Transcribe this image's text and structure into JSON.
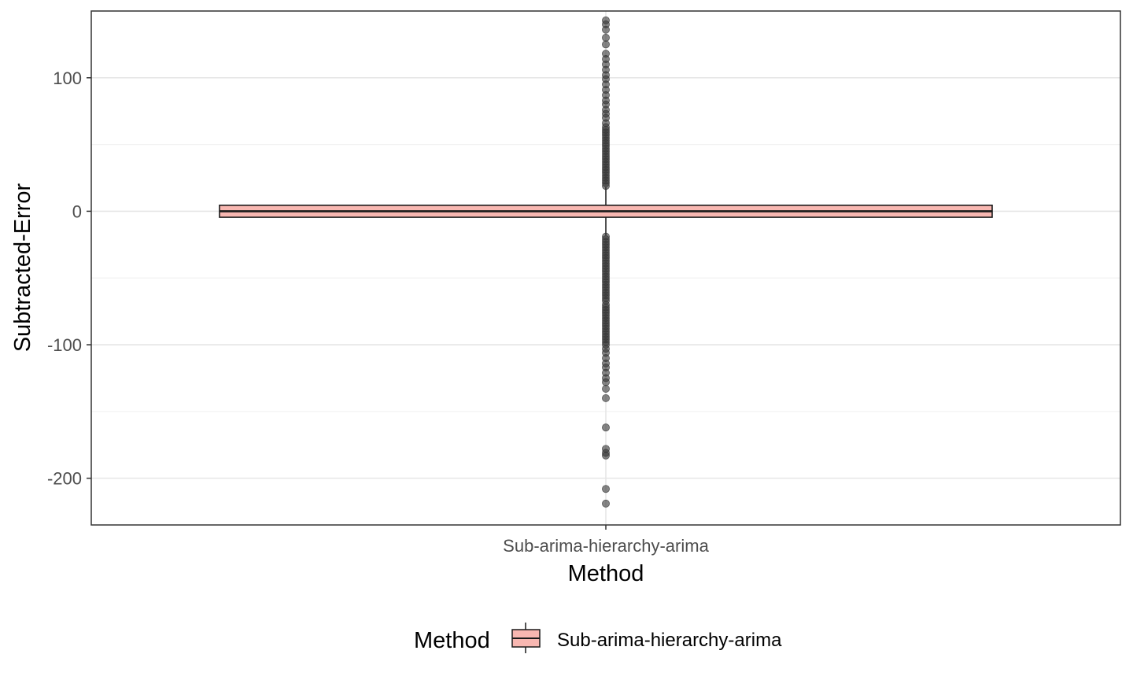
{
  "chart_data": {
    "type": "boxplot",
    "xlabel": "Method",
    "ylabel": "Subtracted-Error",
    "categories": [
      "Sub-arima-hierarchy-arima"
    ],
    "y_ticks": [
      100,
      0,
      -100,
      -200
    ],
    "y_tick_labels": [
      "100",
      "0",
      "-100",
      "-200"
    ],
    "ylim": [
      -235,
      150
    ],
    "grid": true,
    "legend": {
      "title": "Method",
      "position": "bottom",
      "entries": [
        "Sub-arima-hierarchy-arima"
      ]
    },
    "colors": {
      "box_fill": "#f8b7b1",
      "box_stroke": "#1a1a1a",
      "outlier": "#333333",
      "grid_major": "#e6e6e6",
      "grid_minor": "#f2f2f2",
      "panel_border": "#333333"
    },
    "boxes": [
      {
        "category": "Sub-arima-hierarchy-arima",
        "q1": -4.5,
        "median": 0,
        "q3": 4.5,
        "whisker_low": -18,
        "whisker_high": 18,
        "outliers": [
          143,
          140,
          136,
          130,
          125,
          118,
          114,
          110,
          106,
          102,
          99,
          95,
          91,
          87,
          83,
          80,
          76,
          73,
          70,
          66,
          63,
          61,
          59,
          57,
          55,
          53,
          51,
          49,
          47,
          45,
          43,
          41,
          39,
          37,
          35,
          33,
          31,
          29,
          27,
          25,
          23,
          21,
          19,
          -19,
          -21,
          -23,
          -25,
          -27,
          -29,
          -31,
          -33,
          -35,
          -37,
          -39,
          -41,
          -43,
          -45,
          -47,
          -49,
          -51,
          -53,
          -55,
          -57,
          -59,
          -61,
          -63,
          -65,
          -67,
          -70,
          -72,
          -74,
          -76,
          -78,
          -80,
          -82,
          -84,
          -86,
          -88,
          -90,
          -92,
          -94,
          -96,
          -98,
          -100,
          -103,
          -106,
          -110,
          -114,
          -117,
          -121,
          -125,
          -128,
          -133,
          -140,
          -162,
          -178,
          -181,
          -183,
          -208,
          -219
        ]
      }
    ]
  }
}
